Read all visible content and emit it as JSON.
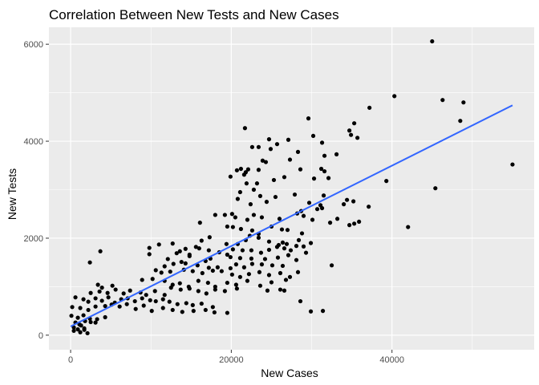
{
  "chart_data": {
    "type": "scatter",
    "title": "Correlation Between New Tests and New Cases",
    "xlabel": "New Cases",
    "ylabel": "New Tests",
    "xlim": [
      -2700,
      57700
    ],
    "ylim": [
      -300,
      6350
    ],
    "x_ticks": [
      0,
      20000,
      40000
    ],
    "x_tick_labels": [
      "0",
      "20000",
      "40000"
    ],
    "y_ticks": [
      0,
      2000,
      4000,
      6000
    ],
    "y_tick_labels": [
      "0",
      "2000",
      "4000",
      "6000"
    ],
    "grid": true,
    "panel_background": "#ebebeb",
    "point_color": "#000000",
    "trend_line": {
      "color": "#3366ff",
      "x": [
        0,
        55000
      ],
      "y": [
        180,
        4740
      ]
    },
    "points": [
      [
        45000,
        6060
      ],
      [
        40300,
        4930
      ],
      [
        46300,
        4850
      ],
      [
        48900,
        4800
      ],
      [
        48500,
        4420
      ],
      [
        37200,
        4690
      ],
      [
        29600,
        4470
      ],
      [
        35300,
        4370
      ],
      [
        34700,
        4220
      ],
      [
        35700,
        4070
      ],
      [
        34900,
        4130
      ],
      [
        30200,
        4110
      ],
      [
        21700,
        4270
      ],
      [
        24700,
        4040
      ],
      [
        27100,
        4030
      ],
      [
        25700,
        3940
      ],
      [
        31300,
        3970
      ],
      [
        27300,
        3620
      ],
      [
        22600,
        3880
      ],
      [
        23400,
        3880
      ],
      [
        24900,
        3840
      ],
      [
        28300,
        3780
      ],
      [
        31600,
        3700
      ],
      [
        33100,
        3730
      ],
      [
        23900,
        3600
      ],
      [
        24300,
        3570
      ],
      [
        21200,
        3430
      ],
      [
        21800,
        3360
      ],
      [
        20700,
        3400
      ],
      [
        22100,
        3420
      ],
      [
        23400,
        3410
      ],
      [
        28600,
        3420
      ],
      [
        19900,
        3270
      ],
      [
        21600,
        3310
      ],
      [
        26600,
        3260
      ],
      [
        31200,
        3430
      ],
      [
        31600,
        3380
      ],
      [
        30300,
        3230
      ],
      [
        32100,
        3240
      ],
      [
        39300,
        3180
      ],
      [
        55000,
        3520
      ],
      [
        45400,
        3030
      ],
      [
        21900,
        3130
      ],
      [
        23200,
        3130
      ],
      [
        25300,
        3200
      ],
      [
        22800,
        3000
      ],
      [
        21100,
        2950
      ],
      [
        20800,
        2810
      ],
      [
        22400,
        2700
      ],
      [
        23600,
        2870
      ],
      [
        24400,
        2750
      ],
      [
        25500,
        2850
      ],
      [
        27900,
        2900
      ],
      [
        31500,
        2880
      ],
      [
        34400,
        2790
      ],
      [
        35200,
        2760
      ],
      [
        34000,
        2700
      ],
      [
        31100,
        2680
      ],
      [
        29700,
        2730
      ],
      [
        30700,
        2600
      ],
      [
        31300,
        2620
      ],
      [
        37100,
        2650
      ],
      [
        18000,
        2480
      ],
      [
        19200,
        2480
      ],
      [
        20100,
        2500
      ],
      [
        20500,
        2430
      ],
      [
        22000,
        2380
      ],
      [
        22800,
        2480
      ],
      [
        23800,
        2430
      ],
      [
        26000,
        2400
      ],
      [
        28200,
        2510
      ],
      [
        28700,
        2560
      ],
      [
        29000,
        2460
      ],
      [
        30100,
        2380
      ],
      [
        32300,
        2320
      ],
      [
        33200,
        2400
      ],
      [
        35300,
        2300
      ],
      [
        35900,
        2340
      ],
      [
        34700,
        2270
      ],
      [
        42000,
        2230
      ],
      [
        16100,
        2320
      ],
      [
        19500,
        2240
      ],
      [
        20200,
        2230
      ],
      [
        21200,
        2190
      ],
      [
        22600,
        2160
      ],
      [
        23400,
        2090
      ],
      [
        25000,
        2240
      ],
      [
        26300,
        2180
      ],
      [
        27000,
        2170
      ],
      [
        28800,
        2100
      ],
      [
        16300,
        1950
      ],
      [
        17300,
        2020
      ],
      [
        19400,
        1880
      ],
      [
        20800,
        1880
      ],
      [
        21800,
        1960
      ],
      [
        22300,
        2050
      ],
      [
        23400,
        2010
      ],
      [
        24700,
        1930
      ],
      [
        25900,
        1860
      ],
      [
        26400,
        1910
      ],
      [
        26900,
        1880
      ],
      [
        28400,
        1960
      ],
      [
        29000,
        1830
      ],
      [
        29900,
        1900
      ],
      [
        15600,
        1820
      ],
      [
        16000,
        1790
      ],
      [
        17200,
        1750
      ],
      [
        18500,
        1710
      ],
      [
        19500,
        1660
      ],
      [
        20200,
        1770
      ],
      [
        21400,
        1750
      ],
      [
        22500,
        1750
      ],
      [
        23700,
        1700
      ],
      [
        24700,
        1760
      ],
      [
        25700,
        1820
      ],
      [
        26600,
        1790
      ],
      [
        27400,
        1750
      ],
      [
        28100,
        1840
      ],
      [
        29300,
        1700
      ],
      [
        9800,
        1800
      ],
      [
        11000,
        1870
      ],
      [
        12700,
        1890
      ],
      [
        14300,
        1780
      ],
      [
        13200,
        1690
      ],
      [
        13600,
        1730
      ],
      [
        14800,
        1660
      ],
      [
        3700,
        1730
      ],
      [
        9800,
        1670
      ],
      [
        12100,
        1570
      ],
      [
        13800,
        1510
      ],
      [
        14800,
        1630
      ],
      [
        16800,
        1530
      ],
      [
        17400,
        1580
      ],
      [
        19900,
        1610
      ],
      [
        21100,
        1590
      ],
      [
        22500,
        1580
      ],
      [
        24200,
        1570
      ],
      [
        25800,
        1600
      ],
      [
        27100,
        1650
      ],
      [
        28100,
        1550
      ],
      [
        2400,
        1500
      ],
      [
        11700,
        1420
      ],
      [
        12800,
        1470
      ],
      [
        14300,
        1480
      ],
      [
        15800,
        1440
      ],
      [
        17200,
        1390
      ],
      [
        18300,
        1400
      ],
      [
        19900,
        1380
      ],
      [
        20600,
        1460
      ],
      [
        21600,
        1400
      ],
      [
        22600,
        1470
      ],
      [
        23800,
        1460
      ],
      [
        25100,
        1440
      ],
      [
        26400,
        1430
      ],
      [
        32500,
        1440
      ],
      [
        10600,
        1340
      ],
      [
        11300,
        1290
      ],
      [
        12400,
        1310
      ],
      [
        14100,
        1350
      ],
      [
        15200,
        1320
      ],
      [
        16400,
        1280
      ],
      [
        17700,
        1330
      ],
      [
        18800,
        1320
      ],
      [
        20100,
        1250
      ],
      [
        21100,
        1200
      ],
      [
        22200,
        1260
      ],
      [
        23500,
        1300
      ],
      [
        24700,
        1240
      ],
      [
        26100,
        1280
      ],
      [
        27300,
        1200
      ],
      [
        28300,
        1300
      ],
      [
        3400,
        1040
      ],
      [
        3900,
        980
      ],
      [
        5200,
        1020
      ],
      [
        8900,
        1140
      ],
      [
        10200,
        1160
      ],
      [
        11700,
        1120
      ],
      [
        12700,
        1040
      ],
      [
        13600,
        1070
      ],
      [
        14700,
        1000
      ],
      [
        15900,
        1120
      ],
      [
        17100,
        1080
      ],
      [
        18000,
        1000
      ],
      [
        19500,
        1080
      ],
      [
        20600,
        1040
      ],
      [
        22000,
        1120
      ],
      [
        23600,
        1020
      ],
      [
        25000,
        1090
      ],
      [
        26800,
        1140
      ],
      [
        2500,
        870
      ],
      [
        3600,
        900
      ],
      [
        4600,
        870
      ],
      [
        5600,
        940
      ],
      [
        6600,
        860
      ],
      [
        7400,
        920
      ],
      [
        8700,
        880
      ],
      [
        9400,
        830
      ],
      [
        10500,
        910
      ],
      [
        11700,
        830
      ],
      [
        12500,
        980
      ],
      [
        13700,
        940
      ],
      [
        14800,
        960
      ],
      [
        15900,
        910
      ],
      [
        16900,
        860
      ],
      [
        18000,
        940
      ],
      [
        19200,
        910
      ],
      [
        20700,
        960
      ],
      [
        24500,
        920
      ],
      [
        26100,
        940
      ],
      [
        26600,
        920
      ],
      [
        600,
        780
      ],
      [
        1600,
        740
      ],
      [
        2200,
        690
      ],
      [
        3100,
        760
      ],
      [
        3900,
        710
      ],
      [
        4700,
        780
      ],
      [
        5500,
        670
      ],
      [
        6300,
        740
      ],
      [
        7100,
        760
      ],
      [
        8000,
        700
      ],
      [
        8900,
        760
      ],
      [
        9900,
        720
      ],
      [
        10600,
        700
      ],
      [
        11500,
        740
      ],
      [
        12300,
        690
      ],
      [
        13300,
        640
      ],
      [
        14400,
        660
      ],
      [
        15200,
        620
      ],
      [
        16300,
        650
      ],
      [
        17700,
        580
      ],
      [
        200,
        580
      ],
      [
        1200,
        560
      ],
      [
        2200,
        520
      ],
      [
        3100,
        590
      ],
      [
        4300,
        600
      ],
      [
        5100,
        630
      ],
      [
        6100,
        590
      ],
      [
        7000,
        640
      ],
      [
        8100,
        540
      ],
      [
        9100,
        610
      ],
      [
        10100,
        500
      ],
      [
        11500,
        560
      ],
      [
        12700,
        520
      ],
      [
        13900,
        480
      ],
      [
        15300,
        500
      ],
      [
        16800,
        520
      ],
      [
        17900,
        470
      ],
      [
        19500,
        460
      ],
      [
        28600,
        700
      ],
      [
        29900,
        490
      ],
      [
        31400,
        500
      ],
      [
        100,
        400
      ],
      [
        900,
        360
      ],
      [
        1600,
        410
      ],
      [
        2400,
        340
      ],
      [
        3300,
        330
      ],
      [
        4300,
        370
      ],
      [
        600,
        260
      ],
      [
        1100,
        220
      ],
      [
        1800,
        290
      ],
      [
        2500,
        270
      ],
      [
        3100,
        260
      ],
      [
        400,
        160
      ],
      [
        900,
        120
      ],
      [
        1300,
        200
      ],
      [
        1700,
        140
      ],
      [
        400,
        90
      ],
      [
        1200,
        60
      ],
      [
        1700,
        110
      ],
      [
        2100,
        40
      ]
    ]
  }
}
